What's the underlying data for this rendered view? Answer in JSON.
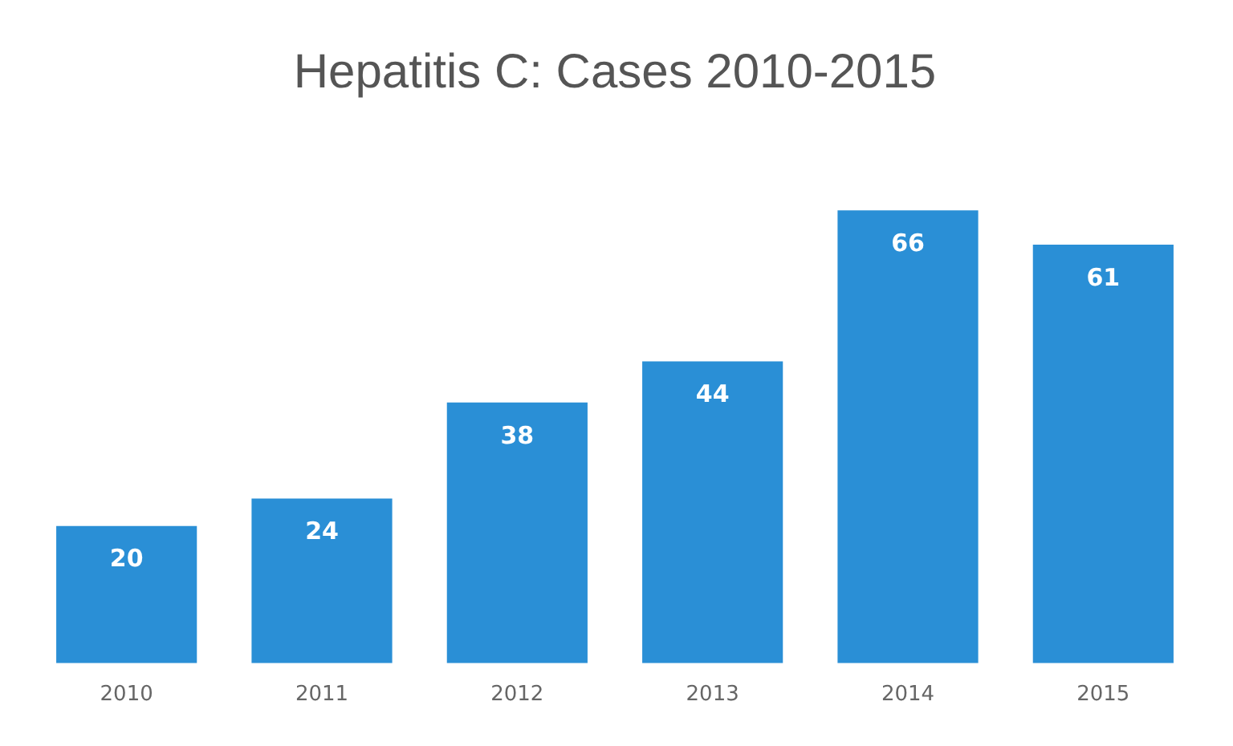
{
  "chart_data": {
    "type": "bar",
    "title": "Hepatitis C: Cases 2010-2015",
    "categories": [
      "2010",
      "2011",
      "2012",
      "2013",
      "2014",
      "2015"
    ],
    "values": [
      20,
      24,
      38,
      44,
      66,
      61
    ],
    "color": "#2a8fd6",
    "data_labels": true,
    "grid": false,
    "legend": false
  }
}
